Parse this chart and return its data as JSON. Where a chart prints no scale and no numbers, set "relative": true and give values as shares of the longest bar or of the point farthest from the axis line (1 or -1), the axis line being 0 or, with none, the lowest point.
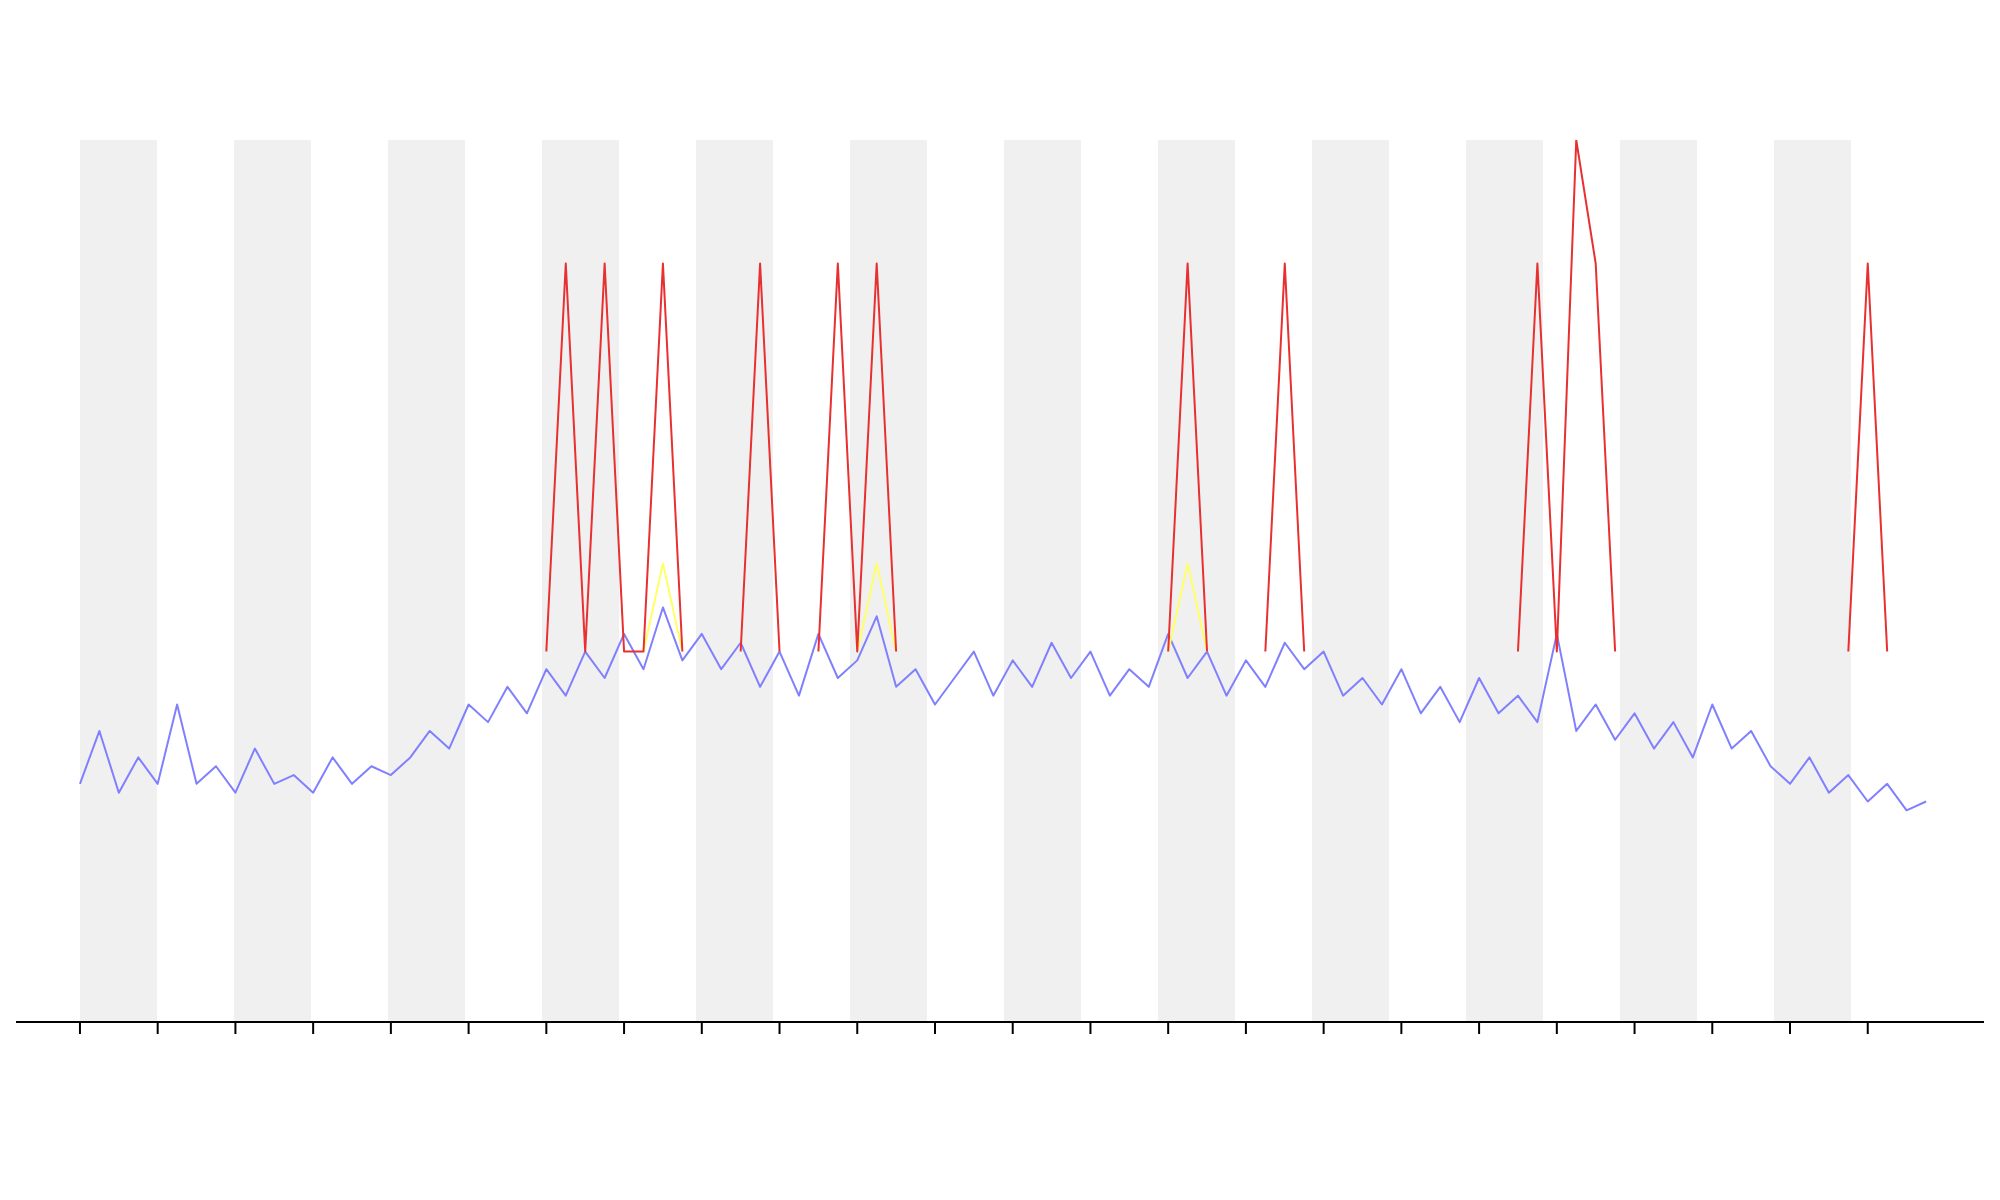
{
  "chart_data": {
    "type": "line",
    "relative": true,
    "tick_labels": false,
    "grid": false,
    "legend": false,
    "marker": "none",
    "categories": [
      null,
      null,
      null,
      null,
      null,
      null,
      null,
      null,
      null,
      null,
      null,
      null,
      null,
      null,
      null,
      null,
      null,
      null,
      null,
      null,
      null,
      null,
      null,
      null,
      null,
      null,
      null,
      null,
      null,
      null,
      null,
      null,
      null,
      null,
      null,
      null,
      null,
      null,
      null,
      null,
      null,
      null,
      null,
      null,
      null,
      null,
      null,
      null,
      null,
      null,
      null,
      null,
      null,
      null,
      null,
      null,
      null,
      null,
      null,
      null,
      null,
      null,
      null,
      null,
      null,
      null,
      null,
      null,
      null,
      null,
      null,
      null,
      null,
      null,
      null,
      null,
      null,
      null,
      null,
      null,
      null,
      null,
      null,
      null,
      null,
      null,
      null,
      null,
      null,
      null,
      null,
      null,
      null,
      null,
      null,
      null
    ],
    "series": [
      {
        "color": "#8080ff",
        "values": [
          0.27,
          0.33,
          0.26,
          0.3,
          0.27,
          0.36,
          0.27,
          0.29,
          0.26,
          0.31,
          0.27,
          0.28,
          0.26,
          0.3,
          0.27,
          0.29,
          0.28,
          0.3,
          0.33,
          0.31,
          0.36,
          0.34,
          0.38,
          0.35,
          0.4,
          0.37,
          0.42,
          0.39,
          0.44,
          0.4,
          0.47,
          0.41,
          0.44,
          0.4,
          0.43,
          0.38,
          0.42,
          0.37,
          0.44,
          0.39,
          0.41,
          0.46,
          0.38,
          0.4,
          0.36,
          0.39,
          0.42,
          0.37,
          0.41,
          0.38,
          0.43,
          0.39,
          0.42,
          0.37,
          0.4,
          0.38,
          0.44,
          0.39,
          0.42,
          0.37,
          0.41,
          0.38,
          0.43,
          0.4,
          0.42,
          0.37,
          0.39,
          0.36,
          0.4,
          0.35,
          0.38,
          0.34,
          0.39,
          0.35,
          0.37,
          0.34,
          0.44,
          0.33,
          0.36,
          0.32,
          0.35,
          0.31,
          0.34,
          0.3,
          0.36,
          0.31,
          0.33,
          0.29,
          0.27,
          0.3,
          0.26,
          0.28,
          0.25,
          0.27,
          0.24,
          0.25
        ]
      },
      {
        "color": "#ffff66",
        "values": [
          null,
          null,
          null,
          null,
          null,
          null,
          null,
          null,
          null,
          null,
          null,
          null,
          null,
          null,
          null,
          null,
          null,
          null,
          null,
          null,
          null,
          null,
          null,
          null,
          null,
          null,
          null,
          null,
          null,
          0.42,
          0.52,
          0.42,
          null,
          null,
          null,
          null,
          null,
          null,
          null,
          null,
          0.42,
          0.52,
          0.42,
          null,
          null,
          null,
          null,
          null,
          null,
          null,
          null,
          null,
          null,
          null,
          null,
          null,
          0.42,
          0.52,
          0.42,
          null,
          null,
          null,
          null,
          null,
          null,
          null,
          null,
          null,
          null,
          null,
          null,
          null,
          null,
          null,
          null,
          null,
          null,
          null,
          null,
          null,
          null,
          null,
          null,
          null,
          null,
          null,
          null,
          null,
          null,
          null,
          null,
          null,
          null,
          null,
          null,
          null
        ]
      },
      {
        "color": "#e83030",
        "values": [
          null,
          null,
          null,
          null,
          null,
          null,
          null,
          null,
          null,
          null,
          null,
          null,
          null,
          null,
          null,
          null,
          null,
          null,
          null,
          null,
          null,
          null,
          null,
          null,
          0.42,
          0.86,
          0.42,
          0.86,
          0.42,
          0.42,
          0.86,
          0.42,
          null,
          null,
          0.42,
          0.86,
          0.42,
          null,
          0.42,
          0.86,
          0.42,
          0.86,
          0.42,
          null,
          null,
          null,
          null,
          null,
          null,
          null,
          null,
          null,
          null,
          null,
          null,
          null,
          0.42,
          0.86,
          0.42,
          null,
          null,
          0.42,
          0.86,
          0.42,
          null,
          null,
          null,
          null,
          null,
          null,
          null,
          null,
          null,
          null,
          0.42,
          0.86,
          0.42,
          1,
          0.86,
          0.42,
          null,
          null,
          null,
          null,
          null,
          null,
          null,
          null,
          null,
          null,
          null,
          0.42,
          0.86,
          0.42,
          null,
          null
        ]
      }
    ]
  }
}
